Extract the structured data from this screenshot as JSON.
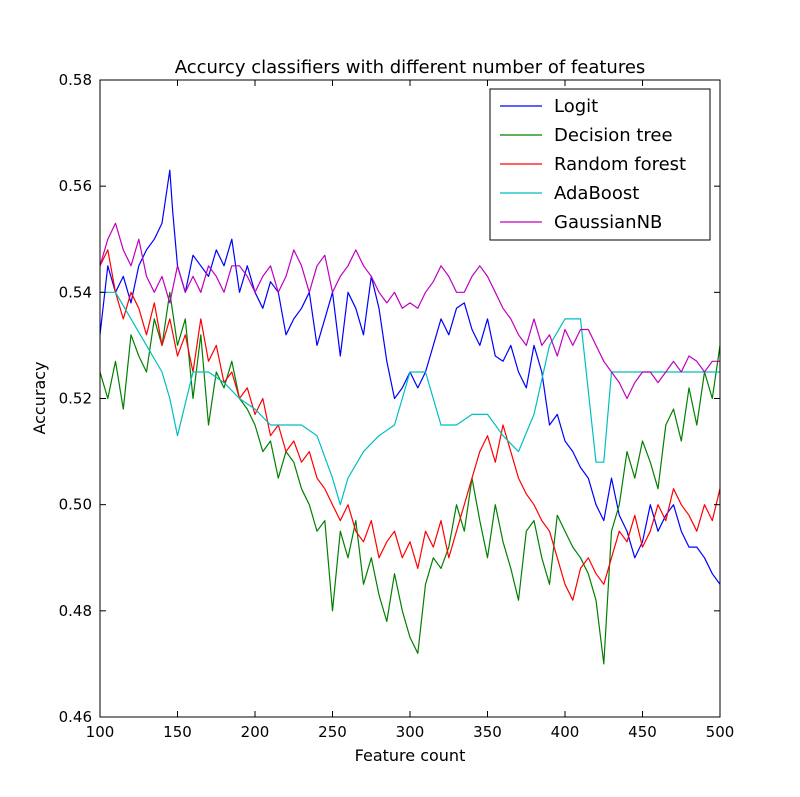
{
  "chart_data": {
    "type": "line",
    "title": "Accurcy classifiers with different number of features",
    "xlabel": "Feature count",
    "ylabel": "Accuracy",
    "xlim": [
      100,
      500
    ],
    "ylim": [
      0.46,
      0.58
    ],
    "xticks": [
      100,
      150,
      200,
      250,
      300,
      350,
      400,
      450,
      500
    ],
    "yticks": [
      0.46,
      0.48,
      0.5,
      0.52,
      0.54,
      0.56,
      0.58
    ],
    "xtick_labels": [
      "100",
      "150",
      "200",
      "250",
      "300",
      "350",
      "400",
      "450",
      "500"
    ],
    "ytick_labels": [
      "0.46",
      "0.48",
      "0.50",
      "0.52",
      "0.54",
      "0.56",
      "0.58"
    ],
    "grid": false,
    "legend_position": "top-right",
    "series": [
      {
        "name": "Logit",
        "color": "#0000ff",
        "x": [
          100,
          105,
          110,
          115,
          120,
          125,
          130,
          135,
          140,
          145,
          147,
          150,
          155,
          160,
          165,
          170,
          175,
          180,
          185,
          190,
          195,
          200,
          205,
          210,
          215,
          220,
          225,
          230,
          235,
          240,
          245,
          250,
          255,
          260,
          265,
          270,
          275,
          280,
          285,
          290,
          295,
          300,
          305,
          310,
          315,
          320,
          325,
          330,
          335,
          340,
          345,
          350,
          355,
          360,
          365,
          370,
          375,
          380,
          385,
          390,
          395,
          400,
          405,
          410,
          415,
          420,
          425,
          430,
          435,
          440,
          445,
          450,
          455,
          460,
          465,
          470,
          475,
          480,
          485,
          490,
          495,
          500
        ],
        "y": [
          0.532,
          0.545,
          0.54,
          0.543,
          0.538,
          0.545,
          0.548,
          0.55,
          0.553,
          0.563,
          0.555,
          0.545,
          0.54,
          0.547,
          0.545,
          0.543,
          0.548,
          0.545,
          0.55,
          0.54,
          0.545,
          0.54,
          0.537,
          0.542,
          0.54,
          0.532,
          0.535,
          0.537,
          0.54,
          0.53,
          0.535,
          0.54,
          0.528,
          0.54,
          0.537,
          0.532,
          0.543,
          0.537,
          0.527,
          0.52,
          0.522,
          0.525,
          0.522,
          0.525,
          0.53,
          0.535,
          0.532,
          0.537,
          0.538,
          0.533,
          0.53,
          0.535,
          0.528,
          0.527,
          0.53,
          0.525,
          0.522,
          0.53,
          0.525,
          0.515,
          0.517,
          0.512,
          0.51,
          0.507,
          0.505,
          0.5,
          0.497,
          0.505,
          0.498,
          0.495,
          0.49,
          0.493,
          0.5,
          0.495,
          0.498,
          0.5,
          0.495,
          0.492,
          0.492,
          0.49,
          0.487,
          0.485
        ]
      },
      {
        "name": "Decision tree",
        "color": "#008000",
        "x": [
          100,
          105,
          110,
          115,
          120,
          125,
          130,
          135,
          140,
          145,
          150,
          155,
          160,
          165,
          170,
          175,
          180,
          185,
          190,
          195,
          200,
          205,
          210,
          215,
          220,
          225,
          230,
          235,
          240,
          245,
          250,
          255,
          260,
          265,
          270,
          275,
          280,
          285,
          290,
          295,
          300,
          305,
          310,
          315,
          320,
          325,
          330,
          335,
          340,
          345,
          350,
          355,
          360,
          365,
          370,
          375,
          380,
          385,
          390,
          395,
          400,
          405,
          410,
          415,
          420,
          425,
          430,
          435,
          440,
          445,
          450,
          455,
          460,
          465,
          470,
          475,
          480,
          485,
          490,
          495,
          500
        ],
        "y": [
          0.525,
          0.52,
          0.527,
          0.518,
          0.532,
          0.528,
          0.525,
          0.535,
          0.53,
          0.54,
          0.53,
          0.535,
          0.52,
          0.532,
          0.515,
          0.525,
          0.522,
          0.527,
          0.52,
          0.518,
          0.515,
          0.51,
          0.512,
          0.505,
          0.51,
          0.508,
          0.503,
          0.5,
          0.495,
          0.497,
          0.48,
          0.495,
          0.49,
          0.497,
          0.485,
          0.49,
          0.483,
          0.478,
          0.487,
          0.48,
          0.475,
          0.472,
          0.485,
          0.49,
          0.488,
          0.492,
          0.5,
          0.495,
          0.505,
          0.497,
          0.49,
          0.5,
          0.493,
          0.488,
          0.482,
          0.495,
          0.497,
          0.49,
          0.485,
          0.498,
          0.495,
          0.492,
          0.49,
          0.487,
          0.482,
          0.47,
          0.495,
          0.5,
          0.51,
          0.505,
          0.512,
          0.508,
          0.503,
          0.515,
          0.518,
          0.512,
          0.522,
          0.515,
          0.525,
          0.52,
          0.53
        ]
      },
      {
        "name": "Random forest",
        "color": "#ff0000",
        "x": [
          100,
          105,
          110,
          115,
          120,
          125,
          130,
          135,
          140,
          145,
          150,
          155,
          160,
          165,
          170,
          175,
          180,
          185,
          190,
          195,
          200,
          205,
          210,
          215,
          220,
          225,
          230,
          235,
          240,
          245,
          250,
          255,
          260,
          265,
          270,
          275,
          280,
          285,
          290,
          295,
          300,
          305,
          310,
          315,
          320,
          325,
          330,
          335,
          340,
          345,
          350,
          355,
          360,
          365,
          370,
          375,
          380,
          385,
          390,
          395,
          400,
          405,
          410,
          415,
          420,
          425,
          430,
          435,
          440,
          445,
          450,
          455,
          460,
          465,
          470,
          475,
          480,
          485,
          490,
          495,
          500
        ],
        "y": [
          0.545,
          0.548,
          0.54,
          0.535,
          0.54,
          0.537,
          0.532,
          0.538,
          0.53,
          0.535,
          0.528,
          0.532,
          0.525,
          0.535,
          0.527,
          0.53,
          0.523,
          0.525,
          0.52,
          0.522,
          0.517,
          0.52,
          0.513,
          0.515,
          0.51,
          0.512,
          0.508,
          0.51,
          0.505,
          0.503,
          0.5,
          0.497,
          0.5,
          0.495,
          0.493,
          0.497,
          0.49,
          0.493,
          0.495,
          0.49,
          0.493,
          0.488,
          0.495,
          0.492,
          0.497,
          0.49,
          0.495,
          0.5,
          0.505,
          0.51,
          0.513,
          0.508,
          0.515,
          0.51,
          0.505,
          0.502,
          0.5,
          0.497,
          0.495,
          0.49,
          0.485,
          0.482,
          0.488,
          0.49,
          0.487,
          0.485,
          0.49,
          0.495,
          0.493,
          0.498,
          0.492,
          0.495,
          0.5,
          0.497,
          0.503,
          0.5,
          0.498,
          0.495,
          0.5,
          0.497,
          0.503
        ]
      },
      {
        "name": "AdaBoost",
        "color": "#00bfbf",
        "x": [
          100,
          110,
          120,
          130,
          140,
          145,
          150,
          160,
          170,
          180,
          190,
          200,
          210,
          220,
          230,
          240,
          250,
          255,
          260,
          270,
          280,
          290,
          295,
          300,
          310,
          320,
          330,
          340,
          350,
          355,
          360,
          370,
          380,
          390,
          400,
          410,
          420,
          425,
          430,
          440,
          450,
          460,
          470,
          480,
          490,
          500
        ],
        "y": [
          0.54,
          0.54,
          0.535,
          0.53,
          0.525,
          0.52,
          0.513,
          0.525,
          0.525,
          0.523,
          0.52,
          0.518,
          0.515,
          0.515,
          0.515,
          0.513,
          0.505,
          0.5,
          0.505,
          0.51,
          0.513,
          0.515,
          0.52,
          0.525,
          0.525,
          0.515,
          0.515,
          0.517,
          0.517,
          0.515,
          0.513,
          0.51,
          0.517,
          0.53,
          0.535,
          0.535,
          0.508,
          0.508,
          0.525,
          0.525,
          0.525,
          0.525,
          0.525,
          0.525,
          0.525,
          0.525
        ]
      },
      {
        "name": "GaussianNB",
        "color": "#bf00bf",
        "x": [
          100,
          105,
          110,
          115,
          120,
          125,
          130,
          135,
          140,
          145,
          150,
          155,
          160,
          165,
          170,
          175,
          180,
          185,
          190,
          195,
          200,
          205,
          210,
          215,
          220,
          225,
          230,
          235,
          240,
          245,
          250,
          255,
          260,
          265,
          270,
          275,
          280,
          285,
          290,
          295,
          300,
          305,
          310,
          315,
          320,
          325,
          330,
          335,
          340,
          345,
          350,
          355,
          360,
          365,
          370,
          375,
          380,
          385,
          390,
          395,
          400,
          405,
          410,
          415,
          420,
          425,
          430,
          435,
          440,
          445,
          450,
          455,
          460,
          465,
          470,
          475,
          480,
          485,
          490,
          495,
          500
        ],
        "y": [
          0.545,
          0.55,
          0.553,
          0.548,
          0.545,
          0.55,
          0.543,
          0.54,
          0.543,
          0.538,
          0.545,
          0.54,
          0.543,
          0.54,
          0.545,
          0.543,
          0.54,
          0.545,
          0.545,
          0.543,
          0.54,
          0.543,
          0.545,
          0.54,
          0.543,
          0.548,
          0.545,
          0.54,
          0.545,
          0.547,
          0.54,
          0.543,
          0.545,
          0.548,
          0.545,
          0.543,
          0.54,
          0.538,
          0.54,
          0.537,
          0.538,
          0.537,
          0.54,
          0.542,
          0.545,
          0.543,
          0.54,
          0.54,
          0.543,
          0.545,
          0.543,
          0.54,
          0.537,
          0.535,
          0.532,
          0.53,
          0.535,
          0.53,
          0.532,
          0.528,
          0.533,
          0.53,
          0.533,
          0.533,
          0.53,
          0.527,
          0.525,
          0.523,
          0.52,
          0.523,
          0.525,
          0.525,
          0.523,
          0.525,
          0.527,
          0.525,
          0.528,
          0.527,
          0.525,
          0.527,
          0.527
        ]
      }
    ]
  }
}
